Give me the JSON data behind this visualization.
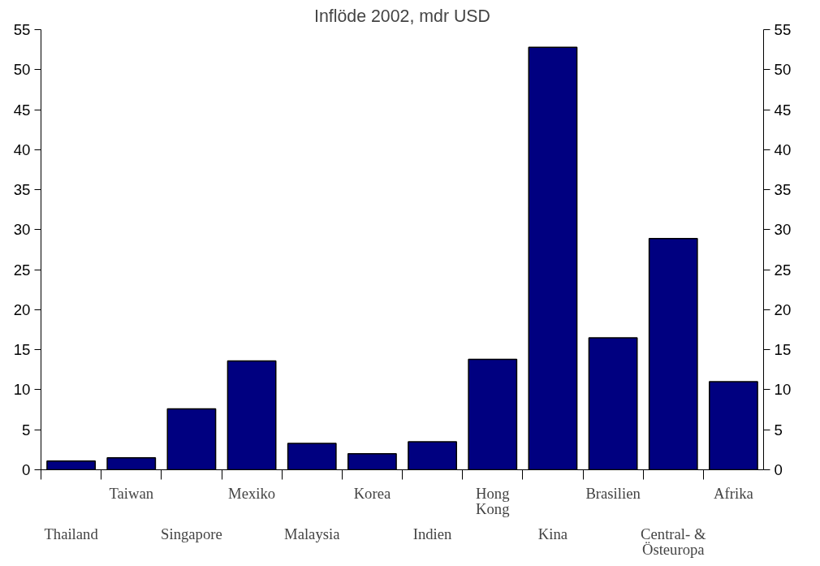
{
  "chart_data": {
    "type": "bar",
    "title": "Inflöde 2002, mdr USD",
    "categories": [
      "Thailand",
      "Taiwan",
      "Singapore",
      "Mexiko",
      "Malaysia",
      "Korea",
      "Indien",
      "Hong\nKong",
      "Kina",
      "Brasilien",
      "Central- &\nÖsteuropa",
      "Afrika"
    ],
    "values": [
      1.1,
      1.5,
      7.6,
      13.6,
      3.3,
      2.0,
      3.5,
      13.8,
      52.8,
      16.5,
      28.9,
      11.0
    ],
    "color": "#000080",
    "ylim": [
      0,
      55
    ],
    "yticks": [
      0,
      5,
      10,
      15,
      20,
      25,
      30,
      35,
      40,
      45,
      50,
      55
    ],
    "y2lim": [
      0,
      55
    ],
    "y2ticks": [
      0,
      5,
      10,
      15,
      20,
      25,
      30,
      35,
      40,
      45,
      50,
      55
    ],
    "grid": false
  }
}
